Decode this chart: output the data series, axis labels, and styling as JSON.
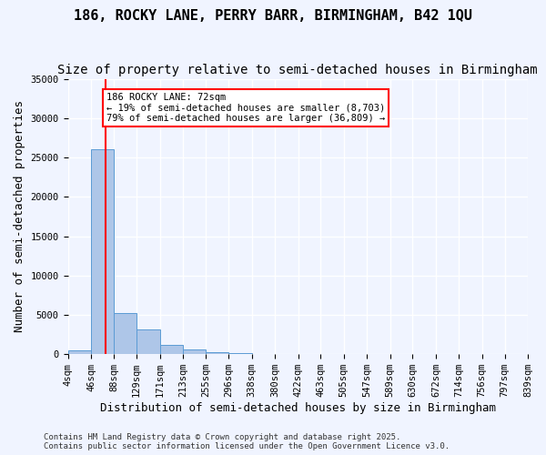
{
  "title": "186, ROCKY LANE, PERRY BARR, BIRMINGHAM, B42 1QU",
  "subtitle": "Size of property relative to semi-detached houses in Birmingham",
  "xlabel": "Distribution of semi-detached houses by size in Birmingham",
  "ylabel": "Number of semi-detached properties",
  "bin_labels": [
    "4sqm",
    "46sqm",
    "88sqm",
    "129sqm",
    "171sqm",
    "213sqm",
    "255sqm",
    "296sqm",
    "338sqm",
    "380sqm",
    "422sqm",
    "463sqm",
    "505sqm",
    "547sqm",
    "589sqm",
    "630sqm",
    "672sqm",
    "714sqm",
    "756sqm",
    "797sqm",
    "839sqm"
  ],
  "bin_edges": [
    4,
    46,
    88,
    129,
    171,
    213,
    255,
    296,
    338,
    380,
    422,
    463,
    505,
    547,
    589,
    630,
    672,
    714,
    756,
    797,
    839
  ],
  "bar_heights": [
    500,
    26000,
    5200,
    3200,
    1200,
    600,
    200,
    100,
    60,
    40,
    30,
    20,
    15,
    10,
    8,
    6,
    5,
    4,
    3,
    2
  ],
  "bar_color": "#aec6e8",
  "bar_edgecolor": "#5b9bd5",
  "property_size": 72,
  "red_line_color": "#ff0000",
  "annotation_text": "186 ROCKY LANE: 72sqm\n← 19% of semi-detached houses are smaller (8,703)\n79% of semi-detached houses are larger (36,809) →",
  "annotation_box_color": "#ffffff",
  "annotation_box_edgecolor": "#ff0000",
  "ylim": [
    0,
    35000
  ],
  "yticks": [
    0,
    5000,
    10000,
    15000,
    20000,
    25000,
    30000,
    35000
  ],
  "footer_text": "Contains HM Land Registry data © Crown copyright and database right 2025.\nContains public sector information licensed under the Open Government Licence v3.0.",
  "background_color": "#f0f4ff",
  "grid_color": "#ffffff",
  "title_fontsize": 11,
  "subtitle_fontsize": 10,
  "tick_fontsize": 7.5,
  "ylabel_fontsize": 9,
  "xlabel_fontsize": 9
}
